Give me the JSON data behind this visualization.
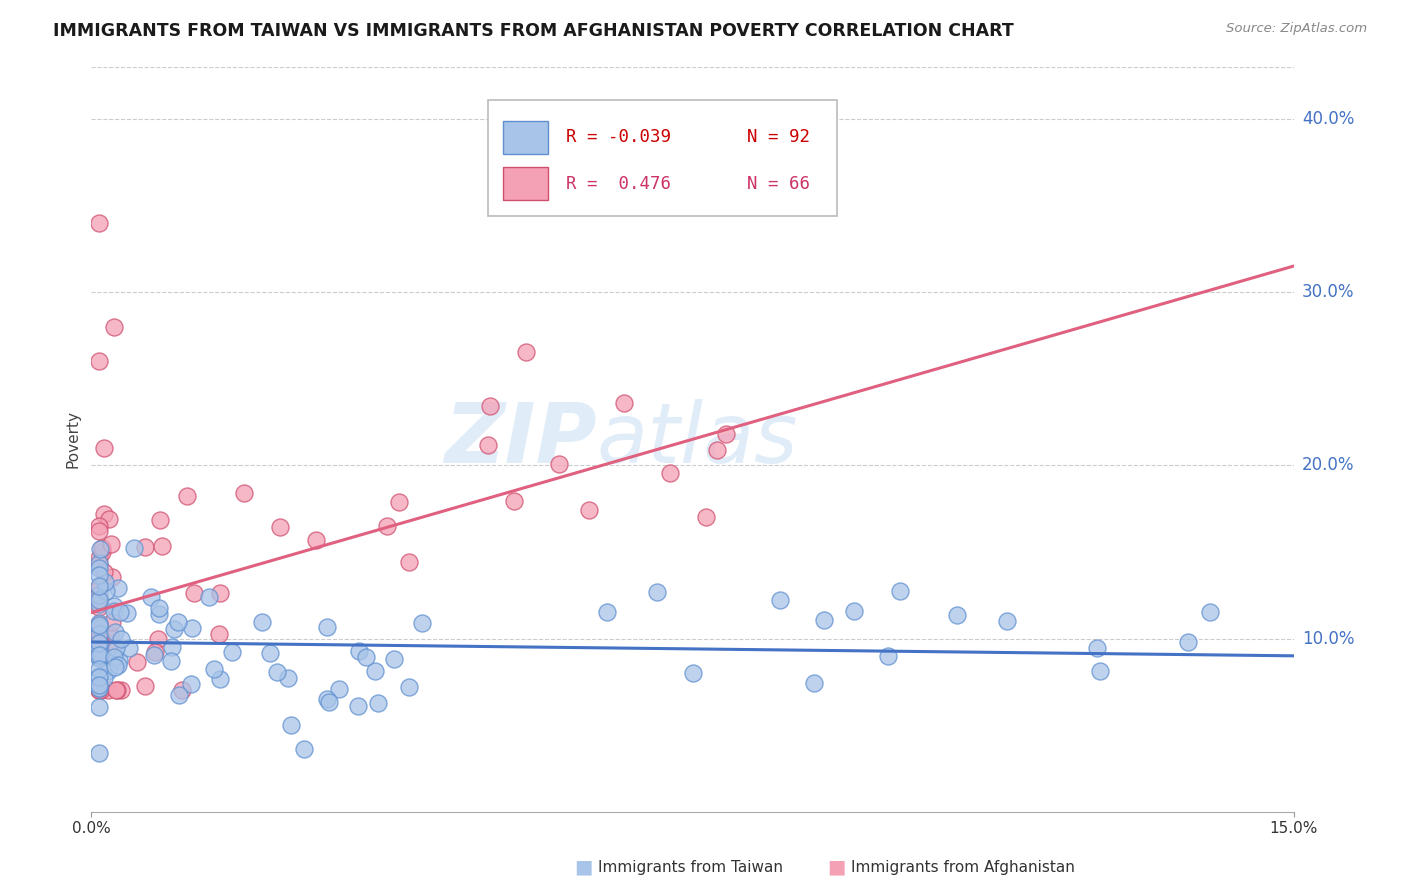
{
  "title": "IMMIGRANTS FROM TAIWAN VS IMMIGRANTS FROM AFGHANISTAN POVERTY CORRELATION CHART",
  "source": "Source: ZipAtlas.com",
  "ylabel": "Poverty",
  "right_yticks": [
    "40.0%",
    "30.0%",
    "20.0%",
    "10.0%"
  ],
  "right_ytick_vals": [
    0.4,
    0.3,
    0.2,
    0.1
  ],
  "watermark_zip": "ZIP",
  "watermark_atlas": "atlas",
  "taiwan_color": "#a8c4e8",
  "afghanistan_color": "#f4a0b5",
  "taiwan_line_color": "#4472c4",
  "afghanistan_line_color": "#e06080",
  "taiwan_edge_color": "#6090d0",
  "afghanistan_edge_color": "#d05070",
  "background_color": "#ffffff",
  "grid_color": "#cccccc",
  "xmin": 0.0,
  "xmax": 0.15,
  "ymin": 0.0,
  "ymax": 0.43,
  "taiwan_line_y0": 0.098,
  "taiwan_line_y1": 0.09,
  "afghanistan_line_y0": 0.115,
  "afghanistan_line_y1": 0.315,
  "legend_r_taiwan": "R = -0.039",
  "legend_n_taiwan": "N = 92",
  "legend_r_afghanistan": "R =  0.476",
  "legend_n_afghanistan": "N = 66",
  "legend_taiwan_label": "Immigrants from Taiwan",
  "legend_afghanistan_label": "Immigrants from Afghanistan"
}
